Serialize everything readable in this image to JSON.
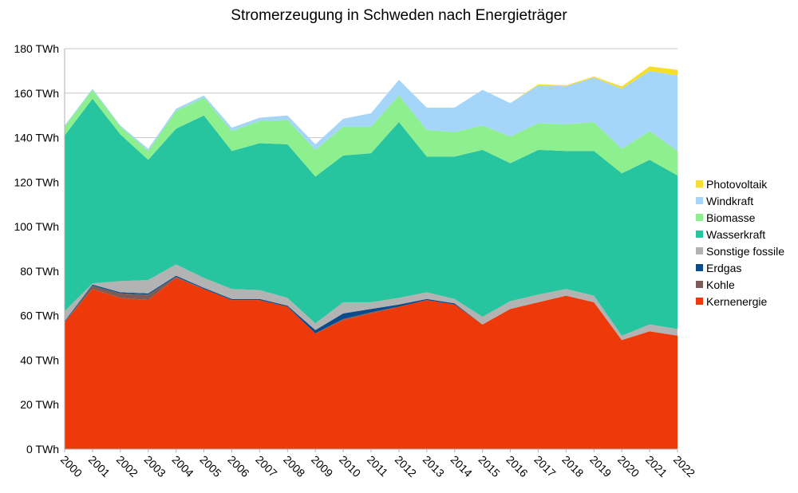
{
  "chart_data": {
    "type": "area",
    "stacked": true,
    "title": "Stromerzeugung in Schweden nach Energieträger",
    "x": [
      "2000",
      "2001",
      "2002",
      "2003",
      "2004",
      "2005",
      "2006",
      "2007",
      "2008",
      "2009",
      "2010",
      "2011",
      "2012",
      "2013",
      "2014",
      "2015",
      "2016",
      "2017",
      "2018",
      "2019",
      "2020",
      "2021",
      "2022"
    ],
    "ylim": [
      0,
      180
    ],
    "yticks": [
      "0 TWh",
      "20 TWh",
      "40 TWh",
      "60 TWh",
      "80 TWh",
      "100 TWh",
      "120 TWh",
      "140 TWh",
      "160 TWh",
      "180 TWh"
    ],
    "grid": true,
    "legend_position": "right",
    "series": [
      {
        "name": "Kernenergie",
        "color": "#ee3a0a",
        "values": [
          57,
          72,
          68,
          67,
          77,
          72,
          67,
          67,
          64,
          52,
          58,
          61,
          64,
          67,
          65,
          56,
          63,
          66,
          69,
          66,
          49,
          53,
          51
        ]
      },
      {
        "name": "Kohle",
        "color": "#7a5d57",
        "values": [
          0,
          1.5,
          2,
          2.5,
          0.5,
          0,
          0,
          0,
          0,
          0,
          0.5,
          0.5,
          0,
          0,
          0,
          0,
          0,
          0,
          0,
          0,
          0,
          0,
          0
        ]
      },
      {
        "name": "Erdgas",
        "color": "#0a4b8c",
        "values": [
          0.5,
          0.5,
          0.5,
          0.5,
          0.5,
          0.5,
          0.5,
          0.5,
          0.5,
          1.5,
          2.5,
          1.5,
          1,
          0.5,
          0.5,
          0,
          0,
          0,
          0,
          0,
          0,
          0,
          0
        ]
      },
      {
        "name": "Sonstige fossile",
        "color": "#b3b3b3",
        "values": [
          4.5,
          0.5,
          5,
          6,
          5,
          4.5,
          4.5,
          4,
          3.5,
          3,
          5,
          3,
          3,
          3,
          2,
          3.5,
          3.5,
          3.5,
          3,
          3,
          2,
          3,
          3
        ]
      },
      {
        "name": "Wasserkraft",
        "color": "#27c4a0",
        "values": [
          79,
          83,
          66,
          54,
          61,
          73,
          62,
          66,
          69,
          66,
          66,
          67,
          79,
          61,
          64,
          75,
          62,
          65,
          62,
          65,
          73,
          74,
          69
        ]
      },
      {
        "name": "Biomasse",
        "color": "#8eef8e",
        "values": [
          4,
          4,
          3.5,
          4,
          8,
          8,
          9,
          10,
          11,
          12,
          13,
          12,
          12,
          12,
          11,
          11,
          12,
          12,
          12,
          13,
          11,
          13,
          11
        ]
      },
      {
        "name": "Windkraft",
        "color": "#a5d6fa",
        "values": [
          0.5,
          0.5,
          0.5,
          1,
          1,
          1,
          1.5,
          1.5,
          2,
          2.5,
          3.5,
          6,
          7,
          10,
          11,
          16,
          15,
          17,
          17,
          20,
          27,
          27,
          34
        ]
      },
      {
        "name": "Photovoltaik",
        "color": "#f7de2d",
        "values": [
          0,
          0,
          0,
          0,
          0,
          0,
          0,
          0,
          0,
          0,
          0,
          0,
          0,
          0,
          0,
          0,
          0,
          0.5,
          0.5,
          0.5,
          1,
          2,
          2.5
        ]
      }
    ]
  }
}
